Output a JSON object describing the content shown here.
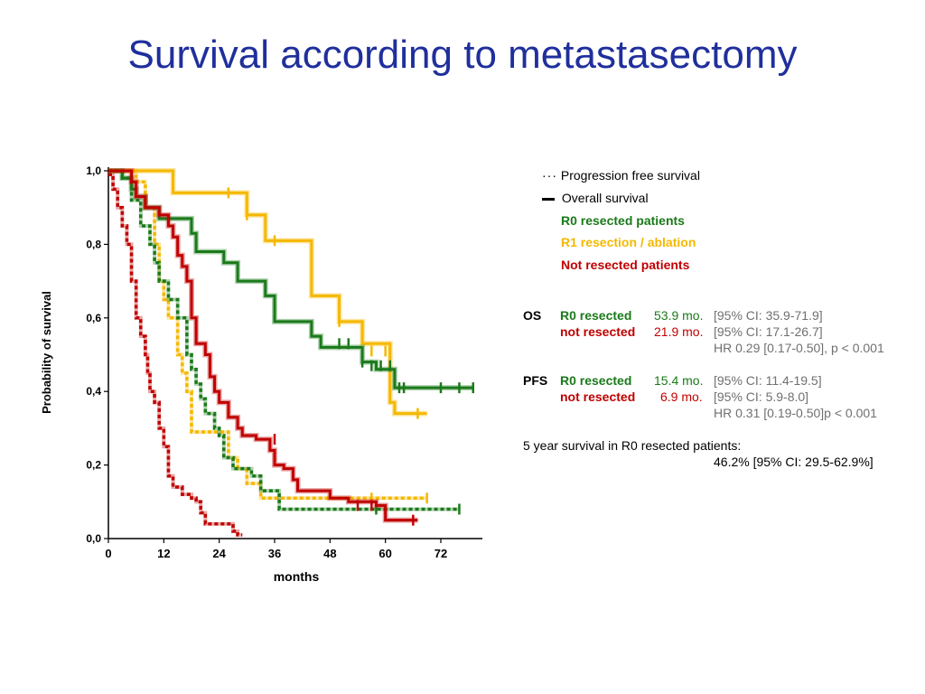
{
  "title": "Survival according to metastasectomy",
  "legend": {
    "pfs_label": "Progression free survival",
    "os_label": "Overall survival",
    "groups": [
      {
        "label": "R0 resected patients",
        "color": "#1a7a1a"
      },
      {
        "label": "R1 resection / ablation",
        "color": "#f5b800"
      },
      {
        "label": "Not resected patients",
        "color": "#c00000"
      }
    ]
  },
  "stats": {
    "os": {
      "label": "OS",
      "rows": [
        {
          "group": "R0 resected",
          "median": "53.9 mo.",
          "ci": "[95% CI: 35.9-71.9]"
        },
        {
          "group": "not resected",
          "median": "21.9 mo.",
          "ci": "[95% CI: 17.1-26.7]"
        }
      ],
      "hr": "HR 0.29 [0.17-0.50], p < 0.001"
    },
    "pfs": {
      "label": "PFS",
      "rows": [
        {
          "group": "R0 resected",
          "median": "15.4 mo.",
          "ci": "[95% CI: 11.4-19.5]"
        },
        {
          "group": "not resected",
          "median": "6.9 mo.",
          "ci": "[95% CI: 5.9-8.0]"
        }
      ],
      "hr": "HR 0.31 [0.19-0.50]p < 0.001"
    },
    "five_year_label": "5 year survival in R0 resected patients:",
    "five_year_value": "46.2% [95% CI: 29.5-62.9%]"
  },
  "chart_data": {
    "type": "line",
    "xlabel": "months",
    "ylabel": "Probability of survival",
    "xlim": [
      0,
      81
    ],
    "ylim": [
      0,
      1
    ],
    "x_ticks": [
      0,
      12,
      24,
      36,
      48,
      60,
      72
    ],
    "y_ticks": [
      0,
      0.2,
      0.4,
      0.6,
      0.8,
      1.0
    ],
    "y_tick_labels": [
      "0,0",
      "0,2",
      "0,4",
      "0,6",
      "0,8",
      "1,0"
    ],
    "grid": false,
    "legend_position": "right",
    "series": [
      {
        "group": "R1 resection / ablation",
        "kind": "pfs",
        "color": "#f5b800",
        "steps": [
          [
            0,
            1.0
          ],
          [
            6,
            0.97
          ],
          [
            8,
            0.9
          ],
          [
            10,
            0.8
          ],
          [
            11,
            0.7
          ],
          [
            12,
            0.65
          ],
          [
            13,
            0.6
          ],
          [
            15,
            0.5
          ],
          [
            16,
            0.45
          ],
          [
            17,
            0.4
          ],
          [
            18,
            0.29
          ],
          [
            23,
            0.29
          ],
          [
            26,
            0.22
          ],
          [
            28,
            0.19
          ],
          [
            30,
            0.15
          ],
          [
            33,
            0.11
          ],
          [
            69,
            0.11
          ]
        ],
        "censored": [
          [
            57,
            0.11
          ],
          [
            69,
            0.11
          ]
        ]
      },
      {
        "group": "R0 resected patients",
        "kind": "pfs",
        "color": "#1a7a1a",
        "steps": [
          [
            0,
            1.0
          ],
          [
            3,
            0.98
          ],
          [
            5,
            0.92
          ],
          [
            7,
            0.85
          ],
          [
            9,
            0.8
          ],
          [
            10,
            0.75
          ],
          [
            11,
            0.7
          ],
          [
            13,
            0.65
          ],
          [
            15,
            0.6
          ],
          [
            17,
            0.5
          ],
          [
            18,
            0.46
          ],
          [
            19,
            0.42
          ],
          [
            20,
            0.38
          ],
          [
            21,
            0.34
          ],
          [
            23,
            0.3
          ],
          [
            24,
            0.28
          ],
          [
            25,
            0.22
          ],
          [
            27,
            0.19
          ],
          [
            31,
            0.17
          ],
          [
            33,
            0.13
          ],
          [
            37,
            0.11
          ],
          [
            37,
            0.08
          ],
          [
            76,
            0.08
          ]
        ],
        "censored": [
          [
            58,
            0.08
          ],
          [
            76,
            0.08
          ]
        ]
      },
      {
        "group": "Not resected patients",
        "kind": "pfs",
        "color": "#c00000",
        "steps": [
          [
            0,
            0.99
          ],
          [
            1,
            0.95
          ],
          [
            2,
            0.9
          ],
          [
            3,
            0.85
          ],
          [
            4,
            0.8
          ],
          [
            5,
            0.7
          ],
          [
            6,
            0.6
          ],
          [
            7,
            0.55
          ],
          [
            8,
            0.5
          ],
          [
            8.5,
            0.45
          ],
          [
            9,
            0.4
          ],
          [
            10,
            0.37
          ],
          [
            11,
            0.3
          ],
          [
            12,
            0.25
          ],
          [
            13,
            0.17
          ],
          [
            14,
            0.14
          ],
          [
            16,
            0.12
          ],
          [
            18,
            0.11
          ],
          [
            19,
            0.1
          ],
          [
            20,
            0.07
          ],
          [
            21,
            0.04
          ],
          [
            26,
            0.04
          ],
          [
            27,
            0.02
          ],
          [
            28,
            0.01
          ],
          [
            29,
            0.01
          ]
        ],
        "censored": []
      },
      {
        "group": "R1 resection / ablation",
        "kind": "os",
        "color": "#f5b800",
        "steps": [
          [
            0,
            1.0
          ],
          [
            14,
            1.0
          ],
          [
            14,
            0.94
          ],
          [
            26,
            0.94
          ],
          [
            28,
            0.94
          ],
          [
            30,
            0.88
          ],
          [
            34,
            0.81
          ],
          [
            41,
            0.81
          ],
          [
            44,
            0.66
          ],
          [
            50,
            0.59
          ],
          [
            55,
            0.53
          ],
          [
            61,
            0.37
          ],
          [
            62,
            0.34
          ],
          [
            69,
            0.34
          ]
        ],
        "censored": [
          [
            26,
            0.94
          ],
          [
            30,
            0.88
          ],
          [
            36,
            0.81
          ],
          [
            50,
            0.59
          ],
          [
            57,
            0.51
          ],
          [
            60,
            0.51
          ],
          [
            67,
            0.34
          ]
        ]
      },
      {
        "group": "R0 resected patients",
        "kind": "os",
        "color": "#1a7a1a",
        "steps": [
          [
            0,
            1.0
          ],
          [
            3,
            0.98
          ],
          [
            5,
            0.95
          ],
          [
            6,
            0.93
          ],
          [
            8,
            0.9
          ],
          [
            11,
            0.9
          ],
          [
            11,
            0.87
          ],
          [
            17,
            0.87
          ],
          [
            18,
            0.83
          ],
          [
            19,
            0.78
          ],
          [
            25,
            0.75
          ],
          [
            28,
            0.7
          ],
          [
            34,
            0.66
          ],
          [
            36,
            0.59
          ],
          [
            44,
            0.55
          ],
          [
            46,
            0.52
          ],
          [
            50,
            0.52
          ],
          [
            55,
            0.48
          ],
          [
            58,
            0.46
          ],
          [
            62,
            0.42
          ],
          [
            62,
            0.41
          ],
          [
            79,
            0.41
          ]
        ],
        "censored": [
          [
            50,
            0.53
          ],
          [
            52,
            0.53
          ],
          [
            55,
            0.48
          ],
          [
            57,
            0.47
          ],
          [
            59,
            0.47
          ],
          [
            61,
            0.47
          ],
          [
            63,
            0.41
          ],
          [
            64,
            0.41
          ],
          [
            72,
            0.41
          ],
          [
            76,
            0.41
          ],
          [
            79,
            0.41
          ]
        ]
      },
      {
        "group": "Not resected patients",
        "kind": "os",
        "color": "#c00000",
        "steps": [
          [
            0,
            1.0
          ],
          [
            5,
            0.97
          ],
          [
            6,
            0.93
          ],
          [
            8,
            0.9
          ],
          [
            11,
            0.88
          ],
          [
            13,
            0.85
          ],
          [
            14,
            0.82
          ],
          [
            15,
            0.77
          ],
          [
            16,
            0.74
          ],
          [
            17,
            0.7
          ],
          [
            18,
            0.6
          ],
          [
            19,
            0.53
          ],
          [
            21,
            0.5
          ],
          [
            22,
            0.44
          ],
          [
            23,
            0.4
          ],
          [
            24,
            0.37
          ],
          [
            26,
            0.33
          ],
          [
            28,
            0.3
          ],
          [
            29,
            0.28
          ],
          [
            32,
            0.27
          ],
          [
            35,
            0.24
          ],
          [
            36,
            0.2
          ],
          [
            38,
            0.19
          ],
          [
            40,
            0.16
          ],
          [
            41,
            0.13
          ],
          [
            45,
            0.13
          ],
          [
            48,
            0.11
          ],
          [
            52,
            0.1
          ],
          [
            58,
            0.09
          ],
          [
            60,
            0.05
          ],
          [
            67,
            0.05
          ]
        ],
        "censored": [
          [
            36,
            0.27
          ],
          [
            54,
            0.09
          ],
          [
            57,
            0.09
          ],
          [
            66,
            0.05
          ]
        ]
      }
    ]
  }
}
